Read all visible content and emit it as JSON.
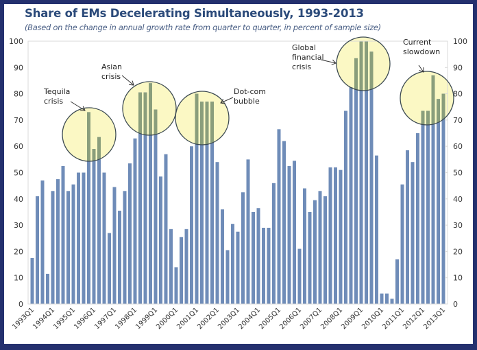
{
  "chart_data": {
    "type": "bar",
    "title": "Share of EMs Decelerating Simultaneously, 1993-2013",
    "subtitle": "(Based on the change in annual growth rate from quarter to quarter, in percent of sample size)",
    "xlabel": "",
    "ylabel": "",
    "ylim": [
      0,
      100
    ],
    "yticks": [
      0,
      10,
      20,
      30,
      40,
      50,
      60,
      70,
      80,
      90,
      100
    ],
    "grid": false,
    "legend": "none",
    "start_year": 1993,
    "categories": [
      "1993Q1",
      "1993Q2",
      "1993Q3",
      "1993Q4",
      "1994Q1",
      "1994Q2",
      "1994Q3",
      "1994Q4",
      "1995Q1",
      "1995Q2",
      "1995Q3",
      "1995Q4",
      "1996Q1",
      "1996Q2",
      "1996Q3",
      "1996Q4",
      "1997Q1",
      "1997Q2",
      "1997Q3",
      "1997Q4",
      "1998Q1",
      "1998Q2",
      "1998Q3",
      "1998Q4",
      "1999Q1",
      "1999Q2",
      "1999Q3",
      "1999Q4",
      "2000Q1",
      "2000Q2",
      "2000Q3",
      "2000Q4",
      "2001Q1",
      "2001Q2",
      "2001Q3",
      "2001Q4",
      "2002Q1",
      "2002Q2",
      "2002Q3",
      "2002Q4",
      "2003Q1",
      "2003Q2",
      "2003Q3",
      "2003Q4",
      "2004Q1",
      "2004Q2",
      "2004Q3",
      "2004Q4",
      "2005Q1",
      "2005Q2",
      "2005Q3",
      "2005Q4",
      "2006Q1",
      "2006Q2",
      "2006Q3",
      "2006Q4",
      "2007Q1",
      "2007Q2",
      "2007Q3",
      "2007Q4",
      "2008Q1",
      "2008Q2",
      "2008Q3",
      "2008Q4",
      "2009Q1",
      "2009Q2",
      "2009Q3",
      "2009Q4",
      "2010Q1",
      "2010Q2",
      "2010Q3",
      "2010Q4",
      "2011Q1",
      "2011Q2",
      "2011Q3",
      "2011Q4",
      "2012Q1",
      "2012Q2",
      "2012Q3",
      "2012Q4",
      "2013Q1"
    ],
    "xtick_labels": [
      "1993Q1",
      "1994Q1",
      "1995Q1",
      "1996Q1",
      "1997Q1",
      "1998Q1",
      "1999Q1",
      "2000Q1",
      "2001Q1",
      "2002Q1",
      "2003Q1",
      "2004Q1",
      "2005Q1",
      "2006Q1",
      "2007Q1",
      "2008Q1",
      "2009Q1",
      "2010Q1",
      "2011Q1",
      "2012Q1",
      "2013Q1"
    ],
    "values": [
      17.5,
      41,
      47,
      11.5,
      43,
      47.5,
      52.5,
      43,
      45.5,
      50,
      50,
      73,
      59,
      63.5,
      50,
      27,
      44.5,
      35.5,
      43,
      53.5,
      63,
      80.5,
      80.5,
      84,
      74,
      48.5,
      57,
      28.5,
      14,
      25.5,
      28.5,
      60,
      80,
      77,
      77,
      77,
      54,
      36,
      20.5,
      30.5,
      27.5,
      42.5,
      55,
      35,
      36.5,
      29,
      29,
      46,
      66.5,
      62,
      52.5,
      54.5,
      21,
      44,
      35,
      39.5,
      43,
      41,
      52,
      52,
      51,
      73.5,
      82.5,
      93.5,
      100,
      100,
      96,
      56.5,
      4,
      4,
      2,
      17,
      45.5,
      58.5,
      54,
      65,
      73.5,
      73.5,
      87,
      78,
      80
    ],
    "annotations": [
      {
        "label": [
          "Tequila",
          "crisis"
        ],
        "highlight_quarters": [
          "1995Q4",
          "1996Q1",
          "1996Q2"
        ]
      },
      {
        "label": [
          "Asian",
          "crisis"
        ],
        "highlight_quarters": [
          "1998Q2",
          "1998Q3",
          "1998Q4",
          "1999Q1"
        ]
      },
      {
        "label": [
          "Dot-com",
          "bubble"
        ],
        "highlight_quarters": [
          "2001Q1",
          "2001Q2",
          "2001Q3",
          "2001Q4"
        ]
      },
      {
        "label": [
          "Global",
          "financial",
          "crisis"
        ],
        "highlight_quarters": [
          "2008Q3",
          "2008Q4",
          "2009Q1",
          "2009Q2",
          "2009Q3"
        ]
      },
      {
        "label": [
          "Current",
          "slowdown"
        ],
        "highlight_quarters": [
          "2012Q1",
          "2012Q2",
          "2012Q3",
          "2012Q4",
          "2013Q1"
        ]
      }
    ]
  },
  "colors": {
    "frame": "#24306e",
    "bar": "#6f8cb8",
    "bar_highlight": "#8a9e7c",
    "circle_fill": "#fbf8c4",
    "circle_stroke": "#3c4a52",
    "title": "#2b4a7a"
  }
}
